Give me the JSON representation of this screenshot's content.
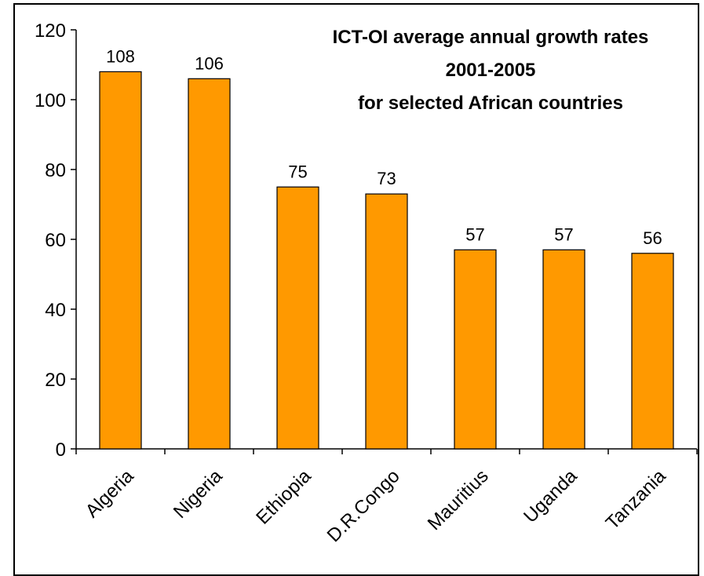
{
  "chart_data": {
    "type": "bar",
    "title_lines": [
      "ICT-OI average annual growth rates",
      "2001-2005",
      "for selected African countries"
    ],
    "categories": [
      "Algeria",
      "Nigeria",
      "Ethiopia",
      "D.R.Congo",
      "Mauritius",
      "Uganda",
      "Tanzania"
    ],
    "values": [
      108,
      106,
      75,
      73,
      57,
      57,
      56
    ],
    "ylim": [
      0,
      120
    ],
    "yticks": [
      0,
      20,
      40,
      60,
      80,
      100,
      120
    ],
    "grid": false,
    "legend": "none",
    "bar_color": "#FF9900"
  }
}
